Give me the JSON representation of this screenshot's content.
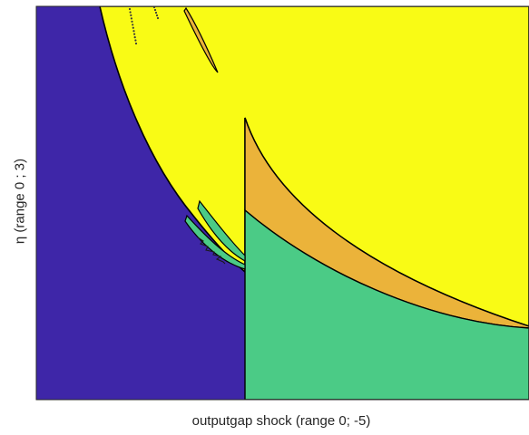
{
  "chart_data": {
    "type": "heatmap",
    "title": "",
    "xlabel": "outputgap shock (range 0; -5)",
    "ylabel": "η (range 0 ; 3)",
    "xlim": [
      0,
      -5
    ],
    "ylim": [
      0,
      3
    ],
    "grid": false,
    "legend": "none",
    "regions": [
      {
        "id": "region-1",
        "color": "#3e26a8"
      },
      {
        "id": "region-2",
        "color": "#f9fb15"
      },
      {
        "id": "region-3",
        "color": "#ebb33a"
      },
      {
        "id": "region-4",
        "color": "#4bcb86"
      }
    ]
  }
}
